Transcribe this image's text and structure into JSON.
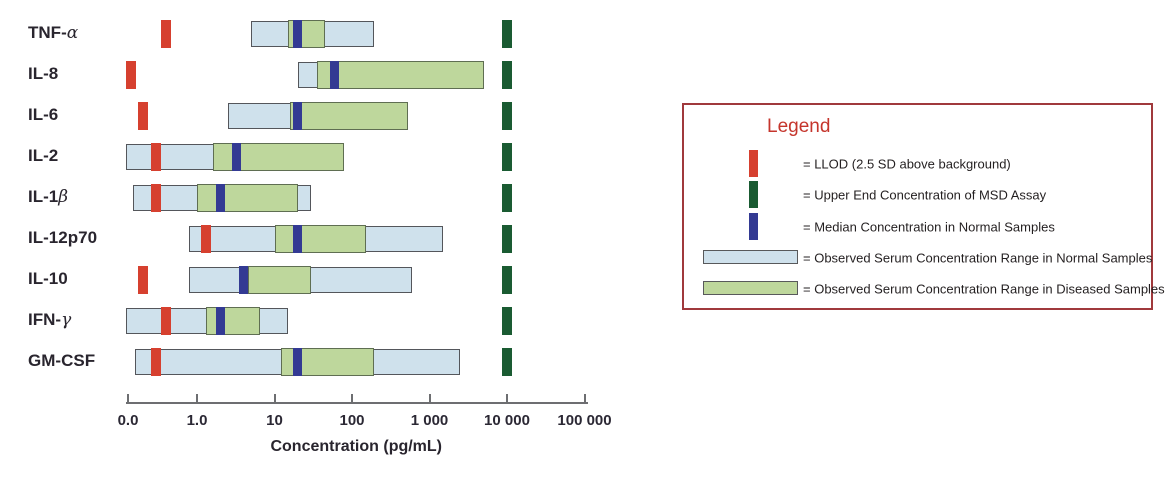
{
  "chart_data": {
    "type": "bar",
    "subtype": "horizontal-log-range-bars",
    "title": "",
    "xlabel": "Concentration (pg/mL)",
    "ylabel": "",
    "units": "pg/mL",
    "x_scale": "log",
    "x_ticks": [
      "0.0",
      "1.0",
      "10",
      "100",
      "1 000",
      "10 000",
      "100 000"
    ],
    "x_tick_values": [
      0,
      1,
      10,
      100,
      1000,
      10000,
      100000
    ],
    "legend_position": "right",
    "rows": [
      {
        "cytokine": "TNF-α",
        "llod": 0.4,
        "normal_range": [
          5,
          190
        ],
        "diseased_range": [
          15,
          45
        ],
        "median_normal": 20,
        "assay_upper_end": 10000
      },
      {
        "cytokine": "IL-8",
        "llod": 0.14,
        "normal_range": [
          20,
          90
        ],
        "diseased_range": [
          35,
          5000
        ],
        "median_normal": 60,
        "assay_upper_end": 10000
      },
      {
        "cytokine": "IL-6",
        "llod": 0.2,
        "normal_range": [
          2.5,
          25
        ],
        "diseased_range": [
          16,
          530
        ],
        "median_normal": 20,
        "assay_upper_end": 10000
      },
      {
        "cytokine": "IL-2",
        "llod": 0.3,
        "normal_range": [
          0.12,
          4
        ],
        "diseased_range": [
          1.6,
          80
        ],
        "median_normal": 3.2,
        "assay_upper_end": 10000
      },
      {
        "cytokine": "IL-1β",
        "llod": 0.3,
        "normal_range": [
          0.15,
          30
        ],
        "diseased_range": [
          1.0,
          20
        ],
        "median_normal": 2.0,
        "assay_upper_end": 10000
      },
      {
        "cytokine": "IL-12p70",
        "llod": 1.3,
        "normal_range": [
          0.8,
          1500
        ],
        "diseased_range": [
          10,
          150
        ],
        "median_normal": 20,
        "assay_upper_end": 10000
      },
      {
        "cytokine": "IL-10",
        "llod": 0.2,
        "normal_range": [
          0.8,
          600
        ],
        "diseased_range": [
          4.5,
          30
        ],
        "median_normal": 4.0,
        "assay_upper_end": 10000
      },
      {
        "cytokine": "IFN-γ",
        "llod": 0.4,
        "normal_range": [
          0.12,
          15
        ],
        "diseased_range": [
          1.3,
          6.5
        ],
        "median_normal": 2.0,
        "assay_upper_end": 10000
      },
      {
        "cytokine": "GM-CSF",
        "llod": 0.3,
        "normal_range": [
          0.16,
          2500
        ],
        "diseased_range": [
          12,
          190
        ],
        "median_normal": 20,
        "assay_upper_end": 10000
      }
    ]
  },
  "legend": {
    "title": "Legend",
    "items": [
      {
        "swatch": "llod-red-bar",
        "label": "= LLOD (2.5 SD above background)"
      },
      {
        "swatch": "upper-end-green-bar",
        "label": "= Upper End Concentration of MSD Assay"
      },
      {
        "swatch": "median-blue-bar",
        "label": "= Median Concentration in Normal Samples"
      },
      {
        "swatch": "normal-range-blue-box",
        "label": "= Observed Serum Concentration Range in Normal Samples"
      },
      {
        "swatch": "diseased-range-green-box",
        "label": "= Observed Serum Concentration Range in Diseased Samples"
      }
    ]
  },
  "colors": {
    "llod_red": "#d6402f",
    "upper_end_green": "#1a5b32",
    "median_blue": "#333a93",
    "normal_fill_lightblue": "#cfe1ec",
    "diseased_fill_lightgreen": "#bed79c",
    "axis_gray": "#6d6e71",
    "legend_border_red": "#a0393c",
    "legend_title_red": "#c5352c",
    "text_dark": "#29252e"
  }
}
